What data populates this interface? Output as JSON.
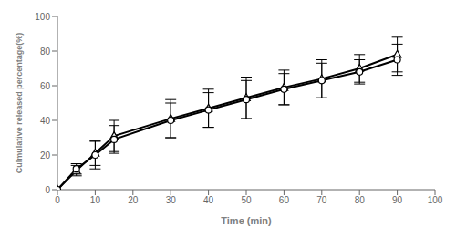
{
  "chart_data": {
    "type": "line",
    "x": [
      0,
      5,
      10,
      15,
      30,
      40,
      50,
      60,
      70,
      80,
      90
    ],
    "series": [
      {
        "color": "#000000",
        "marker": "triangle",
        "values": [
          0,
          11,
          21,
          31,
          41,
          47,
          53,
          59,
          64,
          70,
          78
        ],
        "errors": [
          0,
          3,
          7,
          9,
          11,
          11,
          12,
          10,
          11,
          8,
          10
        ]
      },
      {
        "color": "#000000",
        "marker": "circle",
        "values": [
          0,
          12,
          20,
          29,
          40,
          46,
          52,
          58,
          63,
          68,
          75
        ],
        "errors": [
          0,
          3,
          8,
          8,
          10,
          10,
          11,
          9,
          10,
          7,
          9
        ]
      }
    ],
    "xlabel": "Time (min)",
    "ylabel": "Culmulative released percentage(%)",
    "xlim": [
      0,
      100
    ],
    "ylim": [
      0,
      100
    ],
    "xticks": [
      0,
      10,
      20,
      30,
      40,
      50,
      60,
      70,
      80,
      90,
      100
    ],
    "yticks": [
      0,
      20,
      40,
      60,
      80,
      100
    ],
    "grid": false
  }
}
